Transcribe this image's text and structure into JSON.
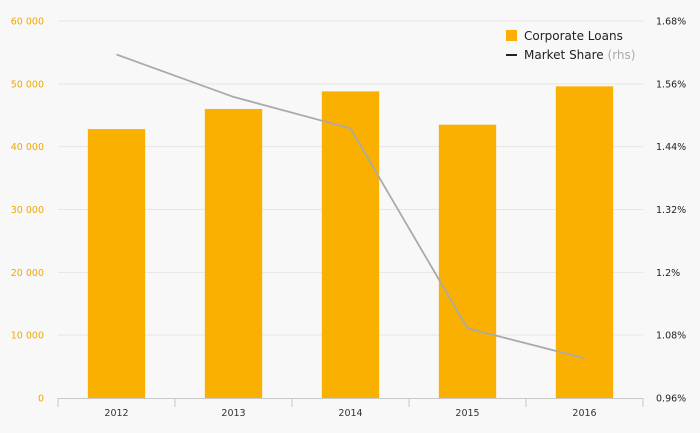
{
  "chart_data": {
    "type": "bar",
    "categories": [
      "2012",
      "2013",
      "2014",
      "2015",
      "2016"
    ],
    "series": [
      {
        "name": "Corporate Loans",
        "type": "bar",
        "axis": "left",
        "color": "#f9b000",
        "values": [
          42800,
          46000,
          48800,
          43500,
          49600
        ]
      },
      {
        "name": "Market Share",
        "name_suffix": "(rhs)",
        "type": "line",
        "axis": "right",
        "color": "#aaaaaa",
        "values": [
          1.616,
          1.535,
          1.475,
          1.093,
          1.036
        ]
      }
    ],
    "y_left": {
      "ylim": [
        0,
        60000
      ],
      "ticks": [
        0,
        10000,
        20000,
        30000,
        40000,
        50000,
        60000
      ],
      "tick_labels": [
        "0",
        "10 000",
        "20 000",
        "30 000",
        "40 000",
        "50 000",
        "60 000"
      ],
      "tick_color": "#f0a800"
    },
    "y_right": {
      "ylim": [
        0.96,
        1.68
      ],
      "ticks": [
        0.96,
        1.08,
        1.2,
        1.32,
        1.44,
        1.56,
        1.68
      ],
      "tick_labels": [
        "0.96%",
        "1.08%",
        "1.2%",
        "1.32%",
        "1.44%",
        "1.56%",
        "1.68%"
      ]
    },
    "title": "",
    "xlabel": "",
    "ylabel": "",
    "grid": true,
    "legend_position": "top-right"
  }
}
